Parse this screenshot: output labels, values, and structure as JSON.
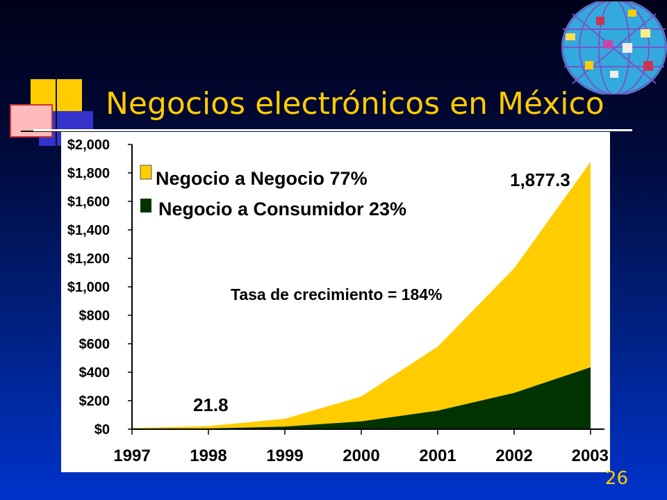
{
  "slide": {
    "title": "Negocios electrónicos en México",
    "page_number": "26"
  },
  "colors": {
    "title": "#ffcc00",
    "b2b": "#ffcc00",
    "b2c": "#003300",
    "page_number": "#ffcc00"
  },
  "chart_data": {
    "type": "area",
    "stacked": true,
    "x": [
      "1997",
      "1998",
      "1999",
      "2000",
      "2001",
      "2002",
      "2003"
    ],
    "series": [
      {
        "name": "Negocio a Consumidor  23%",
        "values": [
          2,
          5,
          18,
          55,
          130,
          255,
          435
        ]
      },
      {
        "name": "Negocio a Negocio  77%",
        "values": [
          6,
          16.8,
          55,
          175,
          450,
          875,
          1442.3
        ]
      }
    ],
    "totals": [
      8,
      21.8,
      73,
      230,
      580,
      1130,
      1877.3
    ],
    "y_ticks": [
      "$0",
      "$200",
      "$400",
      "$600",
      "$800",
      "$1,000",
      "$1,200",
      "$1,400",
      "$1,600",
      "$1,800",
      "$2,000"
    ],
    "ylim": [
      0,
      2000
    ],
    "legend_position": "top-left",
    "annotations": {
      "label_2003": "1,877.3",
      "label_1998": "21.8",
      "growth": "Tasa de crecimiento = 184%"
    }
  }
}
